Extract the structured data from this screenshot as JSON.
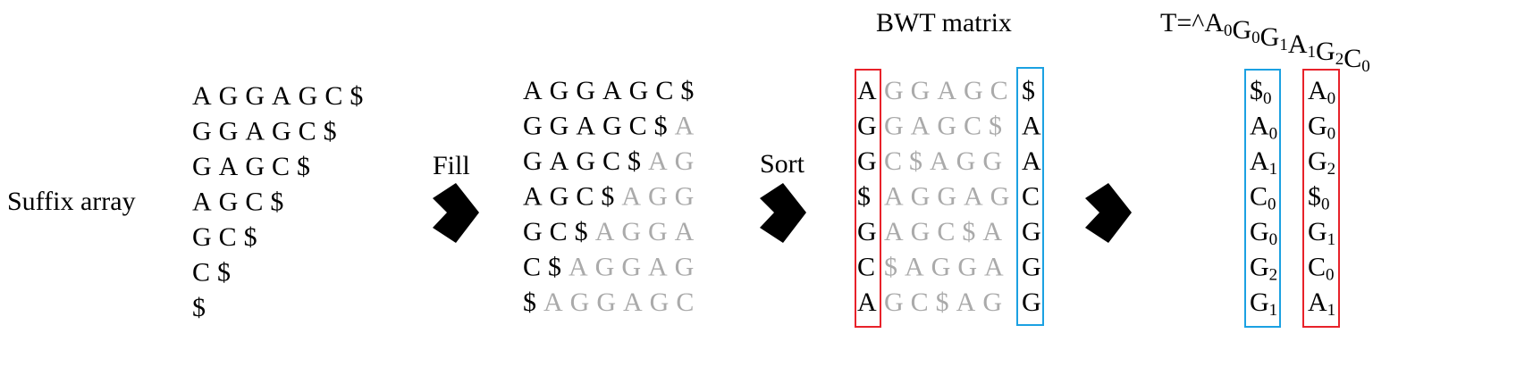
{
  "labels": {
    "suffix_array": "Suffix array",
    "fill": "Fill",
    "sort": "Sort",
    "bwt_matrix": "BWT matrix"
  },
  "text_title": {
    "prefix": "T=^",
    "tokens": [
      {
        "base": "A",
        "sub": "0"
      },
      {
        "base": "G",
        "sub": "0"
      },
      {
        "base": "G",
        "sub": "1"
      },
      {
        "base": "A",
        "sub": "1"
      },
      {
        "base": "G",
        "sub": "2"
      },
      {
        "base": "C",
        "sub": "0"
      }
    ]
  },
  "suffixes": [
    "AGGAGC$",
    "GGAGC$",
    "GAGC$",
    "AGC$",
    "GC$",
    "C$",
    "$"
  ],
  "filled": [
    [
      "AGGAGC$",
      ""
    ],
    [
      "GGAGC$",
      "A"
    ],
    [
      "GAGC$",
      "AG"
    ],
    [
      "AGC$",
      "AGG"
    ],
    [
      "GC$",
      "AGGA"
    ],
    [
      "C$",
      "AGGAG"
    ],
    [
      "$",
      "AGGAGC"
    ]
  ],
  "bwt_rows": [
    [
      "A",
      "GGAGC",
      "$"
    ],
    [
      "G",
      "GAGC$",
      "A"
    ],
    [
      "G",
      "C$AGG",
      "A"
    ],
    [
      "$",
      "AGGAG",
      "C"
    ],
    [
      "G",
      "AGC$A",
      "G"
    ],
    [
      "C",
      "$AGGA",
      "G"
    ],
    [
      "A",
      "GC$AG",
      "G"
    ]
  ],
  "last_column": [
    {
      "base": "$",
      "sub": "0"
    },
    {
      "base": "A",
      "sub": "0"
    },
    {
      "base": "A",
      "sub": "1"
    },
    {
      "base": "C",
      "sub": "0"
    },
    {
      "base": "G",
      "sub": "0"
    },
    {
      "base": "G",
      "sub": "2"
    },
    {
      "base": "G",
      "sub": "1"
    }
  ],
  "first_column": [
    {
      "base": "A",
      "sub": "0"
    },
    {
      "base": "G",
      "sub": "0"
    },
    {
      "base": "G",
      "sub": "2"
    },
    {
      "base": "$",
      "sub": "0"
    },
    {
      "base": "G",
      "sub": "1"
    },
    {
      "base": "C",
      "sub": "0"
    },
    {
      "base": "A",
      "sub": "1"
    }
  ]
}
